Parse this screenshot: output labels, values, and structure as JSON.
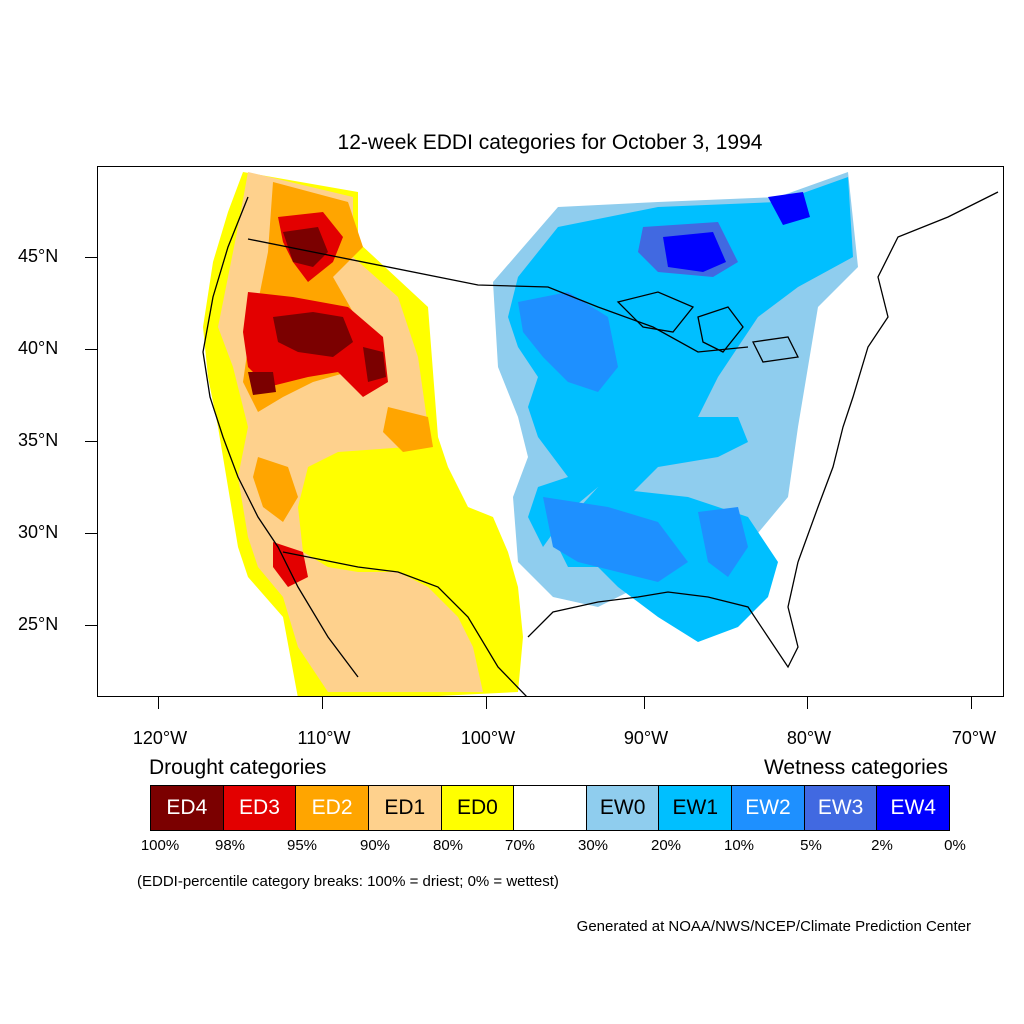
{
  "title": "12-week EDDI categories for October 3, 1994",
  "map": {
    "lat_labels": [
      "45°N",
      "40°N",
      "35°N",
      "30°N",
      "25°N"
    ],
    "lon_labels": [
      "120°W",
      "110°W",
      "100°W",
      "90°W",
      "80°W",
      "70°W"
    ]
  },
  "legend": {
    "drought_heading": "Drought categories",
    "wetness_heading": "Wetness categories",
    "categories": [
      {
        "label": "ED4",
        "color": "#7b0000",
        "text_color": "#ffffff"
      },
      {
        "label": "ED3",
        "color": "#e30000",
        "text_color": "#ffffff"
      },
      {
        "label": "ED2",
        "color": "#ffa500",
        "text_color": "#ffffff"
      },
      {
        "label": "ED1",
        "color": "#fed18d",
        "text_color": "#000000"
      },
      {
        "label": "ED0",
        "color": "#ffff00",
        "text_color": "#000000"
      },
      {
        "label": "",
        "color": "#ffffff",
        "text_color": "#000000"
      },
      {
        "label": "EW0",
        "color": "#8fcdee",
        "text_color": "#000000"
      },
      {
        "label": "EW1",
        "color": "#00bfff",
        "text_color": "#000000"
      },
      {
        "label": "EW2",
        "color": "#1e90ff",
        "text_color": "#ffffff"
      },
      {
        "label": "EW3",
        "color": "#4169e1",
        "text_color": "#ffffff"
      },
      {
        "label": "EW4",
        "color": "#0000ff",
        "text_color": "#ffffff"
      }
    ],
    "breaks": [
      "100%",
      "98%",
      "95%",
      "90%",
      "80%",
      "70%",
      "30%",
      "20%",
      "10%",
      "5%",
      "2%",
      "0%"
    ],
    "note": "(EDDI-percentile category breaks: 100% = driest; 0% = wettest)"
  },
  "credit": "Generated at NOAA/NWS/NCEP/Climate Prediction Center"
}
